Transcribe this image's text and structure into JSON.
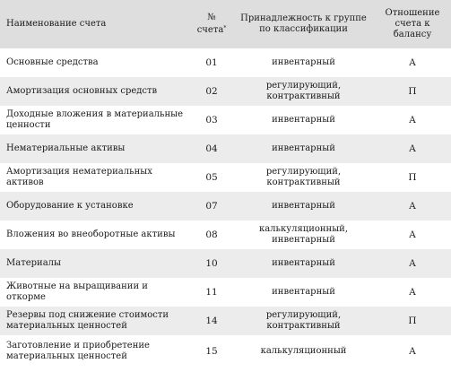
{
  "table": {
    "headers": {
      "name": "Наименование счета",
      "number_line1": "№",
      "number_line2": "счета",
      "number_mark": "*",
      "group": "Принадлежность к группе по классификации",
      "balance": "Отношение счета к балансу"
    },
    "rows": [
      {
        "name": "Основные средства",
        "number": "01",
        "group": "инвентарный",
        "balance": "А"
      },
      {
        "name": "Амортизация основных средств",
        "number": "02",
        "group": "регулирующий, контрактивный",
        "balance": "П"
      },
      {
        "name": "Доходные вложения в материальные ценности",
        "number": "03",
        "group": "инвентарный",
        "balance": "А"
      },
      {
        "name": "Нематериальные активы",
        "number": "04",
        "group": "инвентарный",
        "balance": "А"
      },
      {
        "name": "Амортизация нематериальных активов",
        "number": "05",
        "group": "регулирующий, контрактивный",
        "balance": "П"
      },
      {
        "name": "Оборудование к установке",
        "number": "07",
        "group": "инвентарный",
        "balance": "А"
      },
      {
        "name": "Вложения во внеоборотные активы",
        "number": "08",
        "group": "калькуляционный, инвентарный",
        "balance": "А"
      },
      {
        "name": "Материалы",
        "number": "10",
        "group": "инвентарный",
        "balance": "А"
      },
      {
        "name": "Животные на выращивании и откорме",
        "number": "11",
        "group": "инвентарный",
        "balance": "А"
      },
      {
        "name": "Резервы под снижение стоимости материальных ценностей",
        "number": "14",
        "group": "регулирующий, контрактивный",
        "balance": "П"
      },
      {
        "name": "Заготовление и приобретение материальных ценностей",
        "number": "15",
        "group": "калькуляционный",
        "balance": "А"
      }
    ]
  }
}
